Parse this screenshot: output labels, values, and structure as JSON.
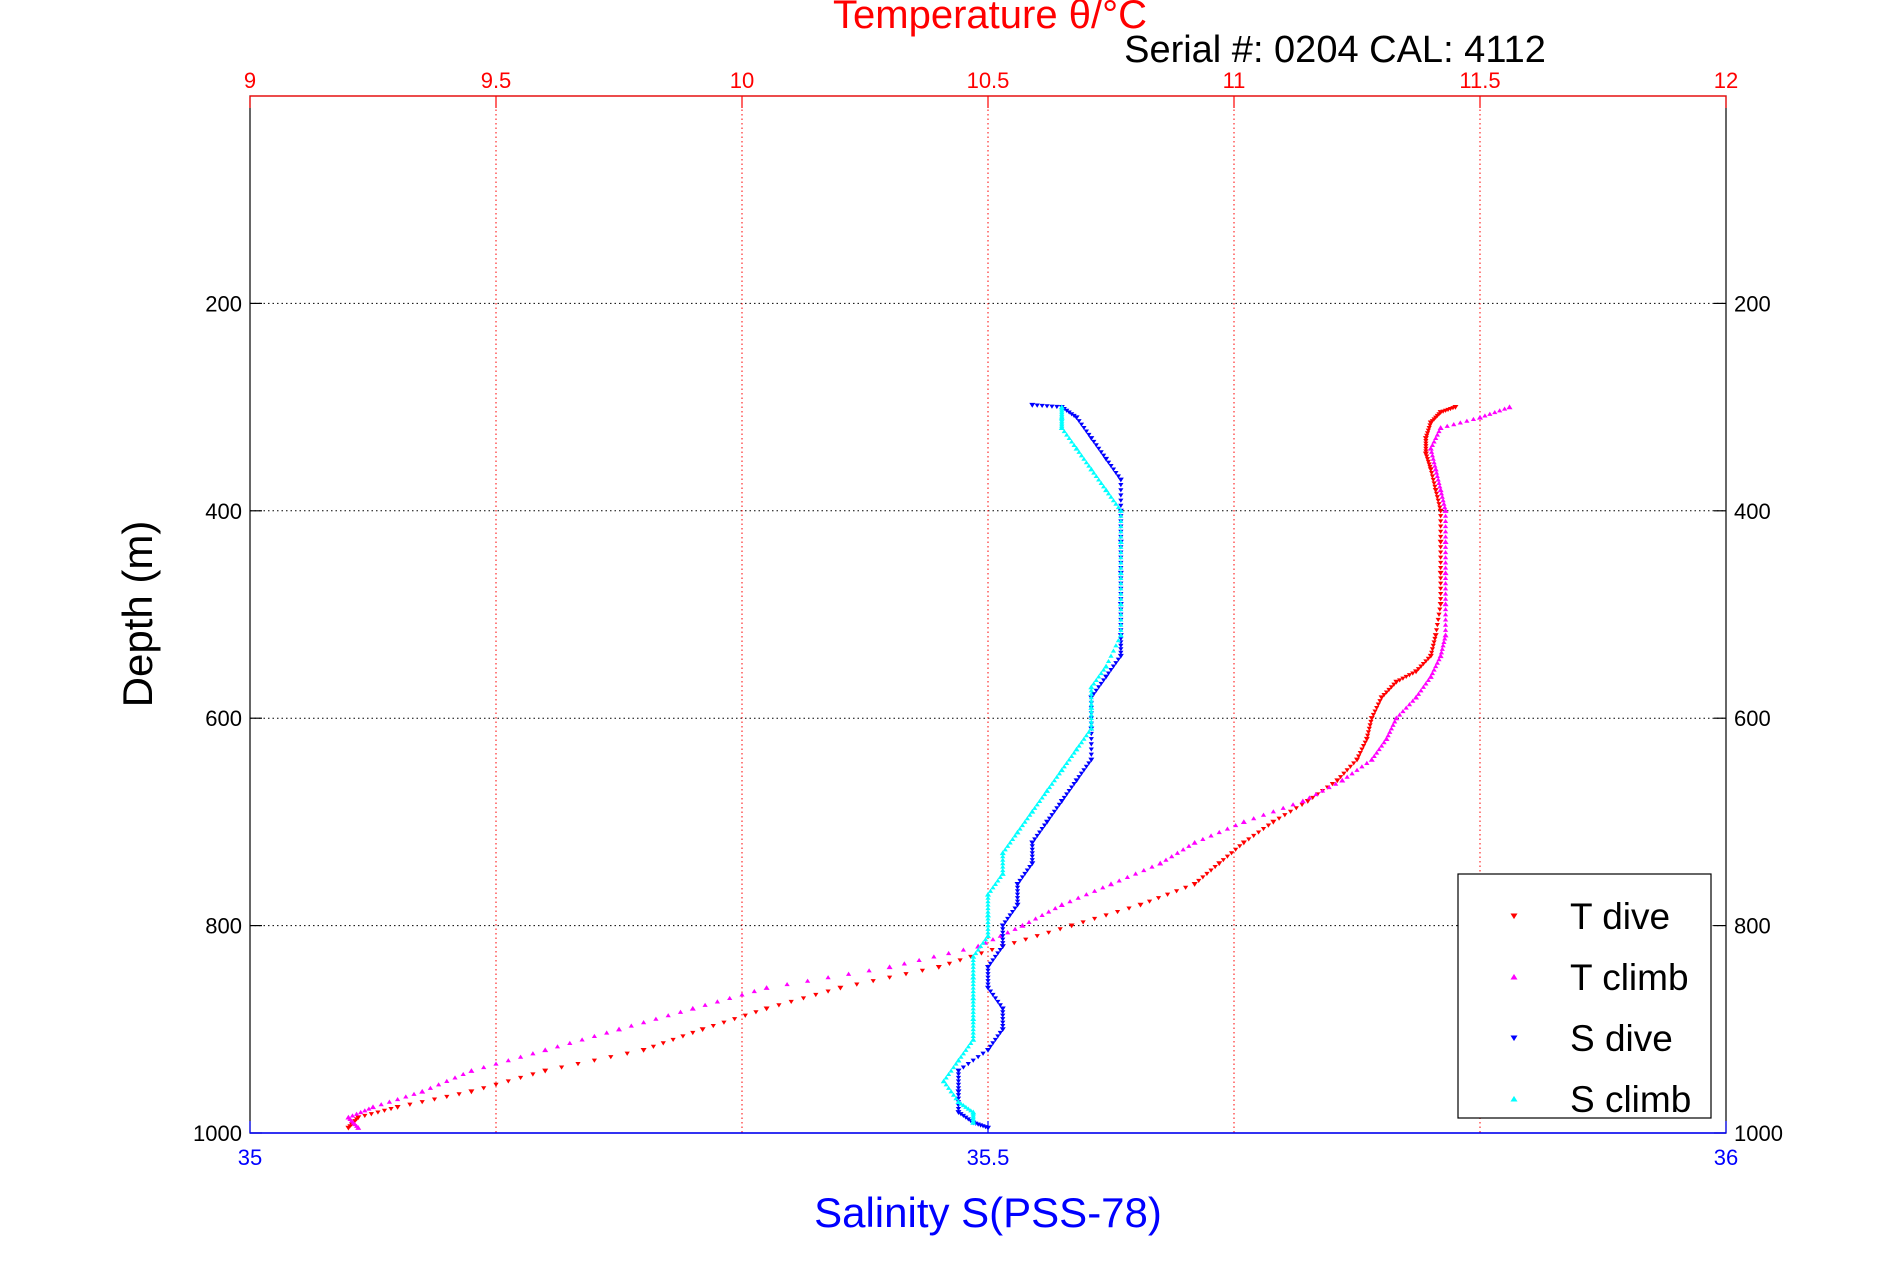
{
  "chart_data": {
    "type": "scatter",
    "title": "Temperature θ/°C",
    "subtitle": "Serial #: 0204  CAL: 4112",
    "ylabel": "Depth (m)",
    "xlabel": "Salinity S(PSS-78)",
    "colors": {
      "temperature_axis": "#ff0000",
      "salinity_axis": "#0000ff",
      "frame": "#000000"
    },
    "axes": {
      "y": {
        "range": [
          0,
          1000
        ],
        "reversed": true,
        "ticks": [
          200,
          400,
          600,
          800,
          1000
        ],
        "tick_labels": [
          "200",
          "400",
          "600",
          "800",
          "1000"
        ],
        "grid": true
      },
      "x_top": {
        "quantity": "temperature",
        "range": [
          9,
          12
        ],
        "ticks": [
          9,
          9.5,
          10,
          10.5,
          11,
          11.5,
          12
        ],
        "tick_labels": [
          "9",
          "9.5",
          "10",
          "10.5",
          "11",
          "11.5",
          "12"
        ],
        "grid": true
      },
      "x_bottom": {
        "quantity": "salinity",
        "range": [
          35,
          36
        ],
        "ticks": [
          35,
          35.5,
          36
        ],
        "tick_labels": [
          "35",
          "35.5",
          "36"
        ]
      }
    },
    "legend": {
      "placement": "bottom-right",
      "entries": [
        "T dive",
        "T climb",
        "S dive",
        "S climb"
      ]
    },
    "series": [
      {
        "name": "T dive",
        "axis": "x_top",
        "color": "#ff0000",
        "marker": "triangle-down",
        "points": [
          [
            11.45,
            300
          ],
          [
            11.42,
            305
          ],
          [
            11.4,
            315
          ],
          [
            11.39,
            330
          ],
          [
            11.39,
            345
          ],
          [
            11.4,
            360
          ],
          [
            11.41,
            380
          ],
          [
            11.42,
            400
          ],
          [
            11.42,
            430
          ],
          [
            11.42,
            460
          ],
          [
            11.42,
            490
          ],
          [
            11.41,
            520
          ],
          [
            11.4,
            540
          ],
          [
            11.37,
            555
          ],
          [
            11.33,
            565
          ],
          [
            11.3,
            580
          ],
          [
            11.28,
            600
          ],
          [
            11.27,
            620
          ],
          [
            11.25,
            640
          ],
          [
            11.21,
            660
          ],
          [
            11.15,
            680
          ],
          [
            11.08,
            700
          ],
          [
            11.02,
            720
          ],
          [
            10.97,
            740
          ],
          [
            10.92,
            760
          ],
          [
            10.81,
            780
          ],
          [
            10.67,
            800
          ],
          [
            10.53,
            820
          ],
          [
            10.4,
            840
          ],
          [
            10.2,
            860
          ],
          [
            10.05,
            880
          ],
          [
            9.92,
            900
          ],
          [
            9.8,
            920
          ],
          [
            9.6,
            940
          ],
          [
            9.45,
            960
          ],
          [
            9.3,
            975
          ],
          [
            9.22,
            985
          ],
          [
            9.2,
            995
          ]
        ]
      },
      {
        "name": "T climb",
        "axis": "x_top",
        "color": "#ff00ff",
        "marker": "triangle-up",
        "points": [
          [
            11.56,
            300
          ],
          [
            11.5,
            310
          ],
          [
            11.42,
            320
          ],
          [
            11.4,
            340
          ],
          [
            11.41,
            360
          ],
          [
            11.42,
            380
          ],
          [
            11.43,
            400
          ],
          [
            11.43,
            430
          ],
          [
            11.43,
            460
          ],
          [
            11.43,
            490
          ],
          [
            11.43,
            520
          ],
          [
            11.42,
            540
          ],
          [
            11.4,
            560
          ],
          [
            11.37,
            580
          ],
          [
            11.33,
            600
          ],
          [
            11.31,
            620
          ],
          [
            11.28,
            640
          ],
          [
            11.22,
            660
          ],
          [
            11.14,
            680
          ],
          [
            11.02,
            700
          ],
          [
            10.92,
            720
          ],
          [
            10.85,
            740
          ],
          [
            10.75,
            760
          ],
          [
            10.65,
            780
          ],
          [
            10.57,
            800
          ],
          [
            10.48,
            820
          ],
          [
            10.3,
            840
          ],
          [
            10.05,
            860
          ],
          [
            9.9,
            880
          ],
          [
            9.75,
            900
          ],
          [
            9.6,
            920
          ],
          [
            9.45,
            940
          ],
          [
            9.35,
            960
          ],
          [
            9.25,
            975
          ],
          [
            9.2,
            985
          ],
          [
            9.22,
            995
          ]
        ]
      },
      {
        "name": "S dive",
        "axis": "x_bottom",
        "color": "#0000ff",
        "marker": "triangle-down",
        "points": [
          [
            35.53,
            298
          ],
          [
            35.55,
            300
          ],
          [
            35.56,
            310
          ],
          [
            35.57,
            330
          ],
          [
            35.58,
            350
          ],
          [
            35.59,
            370
          ],
          [
            35.59,
            400
          ],
          [
            35.59,
            430
          ],
          [
            35.59,
            460
          ],
          [
            35.59,
            490
          ],
          [
            35.59,
            520
          ],
          [
            35.59,
            540
          ],
          [
            35.58,
            560
          ],
          [
            35.57,
            580
          ],
          [
            35.57,
            610
          ],
          [
            35.57,
            640
          ],
          [
            35.56,
            660
          ],
          [
            35.55,
            680
          ],
          [
            35.54,
            700
          ],
          [
            35.53,
            720
          ],
          [
            35.53,
            740
          ],
          [
            35.52,
            760
          ],
          [
            35.52,
            780
          ],
          [
            35.51,
            800
          ],
          [
            35.51,
            820
          ],
          [
            35.5,
            840
          ],
          [
            35.5,
            860
          ],
          [
            35.51,
            880
          ],
          [
            35.51,
            900
          ],
          [
            35.5,
            920
          ],
          [
            35.48,
            940
          ],
          [
            35.48,
            960
          ],
          [
            35.48,
            980
          ],
          [
            35.49,
            990
          ],
          [
            35.5,
            995
          ]
        ]
      },
      {
        "name": "S climb",
        "axis": "x_bottom",
        "color": "#00ffff",
        "marker": "triangle-up",
        "points": [
          [
            35.55,
            300
          ],
          [
            35.55,
            310
          ],
          [
            35.55,
            320
          ],
          [
            35.56,
            340
          ],
          [
            35.57,
            360
          ],
          [
            35.58,
            380
          ],
          [
            35.59,
            400
          ],
          [
            35.59,
            430
          ],
          [
            35.59,
            460
          ],
          [
            35.59,
            490
          ],
          [
            35.59,
            520
          ],
          [
            35.58,
            550
          ],
          [
            35.57,
            570
          ],
          [
            35.57,
            590
          ],
          [
            35.57,
            610
          ],
          [
            35.56,
            630
          ],
          [
            35.55,
            650
          ],
          [
            35.54,
            670
          ],
          [
            35.53,
            690
          ],
          [
            35.52,
            710
          ],
          [
            35.51,
            730
          ],
          [
            35.51,
            750
          ],
          [
            35.5,
            770
          ],
          [
            35.5,
            790
          ],
          [
            35.5,
            810
          ],
          [
            35.49,
            830
          ],
          [
            35.49,
            850
          ],
          [
            35.49,
            870
          ],
          [
            35.49,
            890
          ],
          [
            35.49,
            910
          ],
          [
            35.48,
            930
          ],
          [
            35.47,
            950
          ],
          [
            35.48,
            970
          ],
          [
            35.49,
            980
          ],
          [
            35.49,
            990
          ]
        ]
      }
    ]
  }
}
